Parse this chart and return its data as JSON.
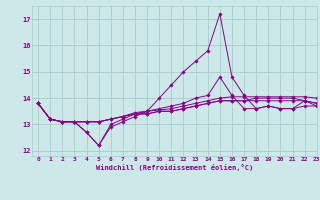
{
  "xlabel": "Windchill (Refroidissement éolien,°C)",
  "xlim": [
    -0.5,
    23
  ],
  "ylim": [
    11.8,
    17.5
  ],
  "yticks": [
    12,
    13,
    14,
    15,
    16,
    17
  ],
  "xticks": [
    0,
    1,
    2,
    3,
    4,
    5,
    6,
    7,
    8,
    9,
    10,
    11,
    12,
    13,
    14,
    15,
    16,
    17,
    18,
    19,
    20,
    21,
    22,
    23
  ],
  "background_color": "#cce8e8",
  "grid_color": "#aacccc",
  "line_color": "#880088",
  "lines": [
    [
      13.8,
      13.2,
      13.1,
      13.1,
      12.7,
      12.2,
      13.0,
      13.2,
      13.4,
      13.5,
      13.6,
      13.7,
      13.8,
      14.0,
      14.1,
      14.8,
      14.1,
      13.6,
      13.6,
      13.7,
      13.6,
      13.6,
      13.7,
      13.7
    ],
    [
      13.8,
      13.2,
      13.1,
      13.1,
      13.1,
      13.1,
      13.2,
      13.3,
      13.4,
      13.4,
      13.5,
      13.5,
      13.6,
      13.7,
      13.8,
      13.9,
      13.9,
      13.9,
      13.9,
      13.9,
      13.9,
      13.9,
      13.9,
      13.8
    ],
    [
      13.8,
      13.2,
      13.1,
      13.1,
      13.1,
      13.1,
      13.2,
      13.3,
      13.4,
      13.4,
      13.5,
      13.5,
      13.6,
      13.7,
      13.8,
      13.9,
      13.9,
      13.9,
      14.0,
      14.0,
      14.0,
      14.0,
      13.9,
      13.8
    ],
    [
      13.8,
      13.2,
      13.1,
      13.1,
      13.1,
      13.1,
      13.2,
      13.3,
      13.45,
      13.5,
      13.55,
      13.6,
      13.7,
      13.8,
      13.9,
      14.0,
      14.05,
      14.05,
      14.05,
      14.05,
      14.05,
      14.05,
      14.05,
      14.0
    ],
    [
      13.8,
      13.2,
      13.1,
      13.1,
      12.7,
      12.2,
      12.9,
      13.1,
      13.3,
      13.5,
      14.0,
      14.5,
      15.0,
      15.4,
      15.8,
      17.2,
      14.8,
      14.1,
      13.6,
      13.7,
      13.6,
      13.6,
      13.9,
      13.7
    ]
  ]
}
